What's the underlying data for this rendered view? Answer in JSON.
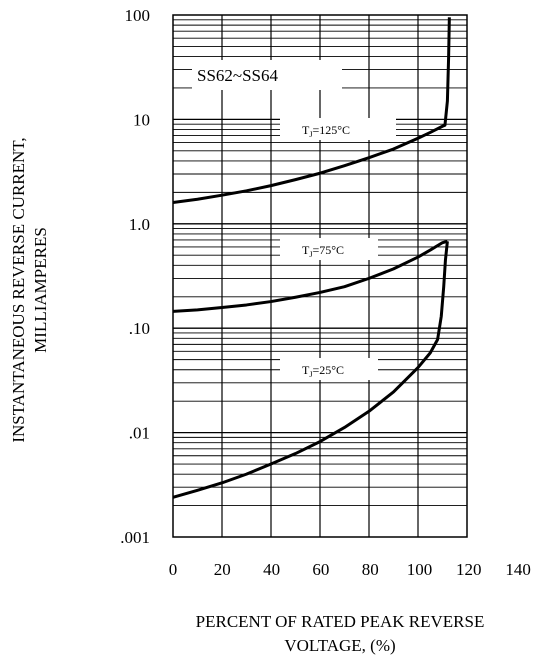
{
  "chart_data": {
    "type": "line",
    "annotation": "SS62~SS64",
    "xlabel": [
      "PERCENT OF RATED PEAK REVERSE",
      "VOLTAGE, (%)"
    ],
    "ylabel": [
      "INSTANTANEOUS REVERSE CURRENT,",
      "MILLIAMPERES"
    ],
    "xlim": [
      0,
      140
    ],
    "ylim": [
      0.001,
      100
    ],
    "yscale": "log",
    "grid": true,
    "x_ticks": [
      0,
      20,
      40,
      60,
      80,
      100,
      120,
      140
    ],
    "x_tick_labels": [
      "0",
      "20",
      "40",
      "60",
      "80",
      "100",
      "120",
      "140"
    ],
    "y_ticks": [
      100,
      10,
      1,
      0.1,
      0.01,
      0.001
    ],
    "y_tick_labels": [
      "100",
      "10",
      "1.0",
      ".10",
      ".01",
      ".001"
    ],
    "series": [
      {
        "label_main": "T",
        "label_sub": "J",
        "label_rest": "=125°C",
        "x": [
          0,
          10,
          20,
          30,
          40,
          50,
          60,
          70,
          80,
          90,
          100,
          105,
          110,
          111,
          112,
          112.5,
          112.8
        ],
        "y": [
          1.6,
          1.72,
          1.88,
          2.07,
          2.32,
          2.65,
          3.05,
          3.6,
          4.3,
          5.2,
          6.6,
          7.5,
          8.6,
          8.8,
          15,
          40,
          95
        ]
      },
      {
        "label_main": "T",
        "label_sub": "J",
        "label_rest": "=75°C",
        "x": [
          0,
          10,
          20,
          30,
          40,
          50,
          60,
          70,
          80,
          90,
          100,
          105,
          110,
          112
        ],
        "y": [
          0.145,
          0.15,
          0.158,
          0.167,
          0.18,
          0.198,
          0.22,
          0.25,
          0.3,
          0.37,
          0.48,
          0.56,
          0.66,
          0.68
        ]
      },
      {
        "label_main": "T",
        "label_sub": "J",
        "label_rest": "=25°C",
        "x": [
          0,
          10,
          20,
          30,
          40,
          50,
          60,
          70,
          80,
          90,
          100,
          105,
          108,
          109.5,
          110.5,
          111.2,
          112
        ],
        "y": [
          0.0024,
          0.0028,
          0.0033,
          0.004,
          0.005,
          0.0063,
          0.0082,
          0.0112,
          0.016,
          0.0245,
          0.042,
          0.058,
          0.078,
          0.13,
          0.25,
          0.45,
          0.68
        ]
      }
    ]
  }
}
